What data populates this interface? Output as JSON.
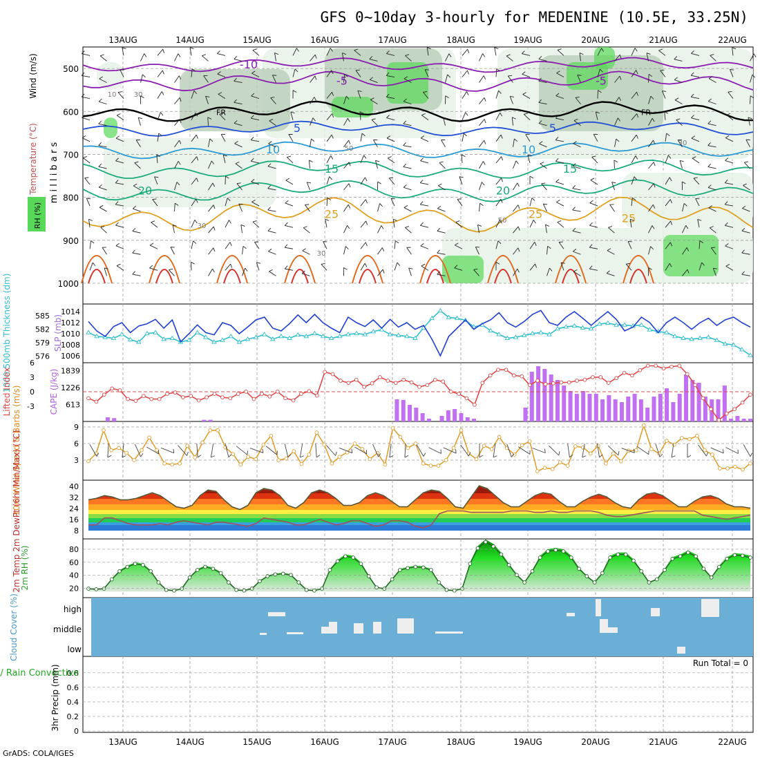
{
  "title": "GFS 0~10day 3-hourly for MEDENINE (10.5E, 33.25N)",
  "footer": "GrADS: COLA/IGES",
  "colors": {
    "temp_contour_cold": "#8a1bb0",
    "temp_contour_mid": "#1f4fd6",
    "temp_contour_warm": "#1aaa7c",
    "temp_contour_hot": "#e0a020",
    "temp_contour_red": "#d6302a",
    "rh_light": "#e6f2e6",
    "rh_mid": "#bcd0bc",
    "rh_green": "#58d858",
    "slp_line": "#1f3fd0",
    "thickness_line": "#2fbfcf",
    "lifted_index": "#e04848",
    "cape_bar": "#c070f0",
    "wind_speed": "#e0a030",
    "cloud_bg": "#6baed6",
    "cloud_fill": "#eeeeee",
    "rh2m": "#22cc22"
  },
  "icons": [
    "wind-barb-icon"
  ],
  "chart_data": [
    {
      "type": "heatmap",
      "panel": "upper-air cross-section",
      "x_dates": [
        "13AUG",
        "14AUG",
        "15AUG",
        "16AUG",
        "17AUG",
        "18AUG",
        "19AUG",
        "20AUG",
        "21AUG",
        "22AUG"
      ],
      "ylabel": "m i l l i b a r s",
      "yticks": [
        500,
        600,
        700,
        800,
        900,
        1000
      ],
      "ylim": [
        1000,
        450
      ],
      "legend_labels": [
        "Wind (m/s)",
        "Temperature (°C)",
        "RH (%)"
      ],
      "temperature_contours": [
        {
          "value": -10,
          "label": "-10"
        },
        {
          "value": -5,
          "label": "-5"
        },
        {
          "value": 0,
          "label": "FR"
        },
        {
          "value": 5,
          "label": "5"
        },
        {
          "value": 10,
          "label": "10"
        },
        {
          "value": 15,
          "label": "15"
        },
        {
          "value": 20,
          "label": "20"
        },
        {
          "value": 25,
          "label": "25"
        }
      ],
      "rh_contour_labels": [
        "10",
        "30",
        "50",
        "30",
        "30",
        "50",
        "30"
      ]
    },
    {
      "type": "line",
      "panel": "thickness-slp",
      "ylabel_left": "1000-500mb Thickness (dm)",
      "ylabel_right": "SLP (mb)",
      "yticks_thickness": [
        576,
        579,
        582,
        585
      ],
      "yticks_slp": [
        1006,
        1008,
        1010,
        1012,
        1014
      ],
      "series": [
        {
          "name": "SLP (mb)",
          "axis": "slp",
          "values": [
            1012.2,
            1010.5,
            1009.5,
            1011.3,
            1012.0,
            1010.2,
            1011.4,
            1011.8,
            1012.6,
            1011.0,
            1012.5,
            1008.5,
            1010.0,
            1011.6,
            1010.2,
            1009.8,
            1012.0,
            1011.5,
            1010.0,
            1011.2,
            1012.5,
            1013.0,
            1011.0,
            1010.5,
            1011.8,
            1013.4,
            1012.0,
            1013.5,
            1012.0,
            1011.0,
            1010.2,
            1013.0,
            1012.0,
            1011.3,
            1012.5,
            1011.0,
            1012.6,
            1011.2,
            1012.0,
            1010.8,
            1011.5,
            1009.0,
            1006.0,
            1009.5,
            1011.0,
            1012.5,
            1010.8,
            1011.8,
            1012.5,
            1013.8,
            1012.0,
            1011.2,
            1012.2,
            1013.5,
            1014.2,
            1012.0,
            1011.5,
            1013.0,
            1014.0,
            1012.8,
            1011.5,
            1012.8,
            1014.0,
            1012.6,
            1010.5,
            1011.2,
            1013.0,
            1012.0,
            1010.2,
            1012.0,
            1013.0,
            1012.0,
            1010.8,
            1012.0,
            1012.8,
            1011.5,
            1012.5,
            1013.0,
            1012.0,
            1011.2
          ]
        },
        {
          "name": "Thickness (dm)",
          "axis": "thickness",
          "values": [
            581.0,
            580.2,
            580.0,
            579.8,
            580.6,
            579.5,
            579.0,
            580.8,
            581.0,
            579.6,
            579.8,
            579.0,
            579.4,
            581.0,
            580.0,
            579.0,
            579.4,
            580.2,
            579.0,
            579.6,
            580.0,
            580.6,
            579.6,
            580.2,
            579.8,
            580.5,
            580.2,
            580.8,
            580.2,
            579.8,
            580.2,
            580.6,
            580.8,
            580.6,
            581.2,
            581.6,
            580.6,
            580.4,
            580.2,
            579.8,
            582.0,
            584.0,
            585.6,
            584.2,
            584.0,
            583.6,
            582.2,
            582.6,
            581.4,
            580.6,
            579.8,
            580.0,
            580.4,
            580.8,
            581.0,
            580.6,
            581.8,
            582.2,
            582.4,
            582.0,
            581.8,
            582.8,
            583.0,
            582.6,
            582.6,
            582.4,
            582.6,
            581.6,
            581.2,
            581.0,
            580.2,
            579.8,
            579.6,
            579.8,
            580.0,
            579.4,
            578.6,
            578.4,
            577.4,
            576.2
          ]
        }
      ]
    },
    {
      "type": "bar",
      "panel": "cape-lifted-index",
      "ylabel_left": "Lifted Index",
      "ylabel_right": "CAPE (J/kg)",
      "yticks_li": [
        -3,
        0,
        3,
        6
      ],
      "yticks_cape": [
        613,
        1226,
        1839
      ],
      "series": [
        {
          "name": "CAPE (J/kg)",
          "values": [
            0,
            0,
            0,
            150,
            120,
            0,
            0,
            0,
            0,
            0,
            0,
            0,
            0,
            0,
            0,
            0,
            0,
            0,
            60,
            60,
            0,
            0,
            0,
            0,
            0,
            0,
            0,
            0,
            0,
            0,
            0,
            0,
            0,
            0,
            0,
            0,
            0,
            0,
            0,
            0,
            0,
            0,
            0,
            0,
            0,
            0,
            0,
            0,
            800,
            780,
            600,
            500,
            300,
            100,
            0,
            200,
            400,
            450,
            300,
            150,
            100,
            0,
            0,
            0,
            0,
            0,
            0,
            0,
            500,
            1800,
            2000,
            1900,
            1700,
            1500,
            1300,
            1100,
            1000,
            1100,
            1000,
            1000,
            800,
            950,
            800,
            700,
            900,
            1000,
            800,
            500,
            900,
            1000,
            1200,
            700,
            1000,
            1700,
            1500,
            1400,
            900,
            800,
            800,
            1300,
            100,
            200,
            100,
            100
          ]
        },
        {
          "name": "Lifted Index",
          "values": [
            1.0,
            1.8,
            0.2,
            -1.2,
            -0.8,
            1.2,
            1.6,
            0.5,
            1.2,
            1.2,
            0.0,
            -0.3,
            0.8,
            0.5,
            1.5,
            0.8,
            0.0,
            0.8,
            1.0,
            0.0,
            -0.5,
            1.2,
            0.0,
            0.6,
            -0.5,
            1.0,
            1.5,
            0.0,
            -0.6,
            0.4,
            -5.0,
            -4.5,
            -3.0,
            -2.5,
            -3.2,
            -1.6,
            -2.4,
            -3.8,
            -3.0,
            -2.5,
            -3.2,
            -2.6,
            -1.6,
            -2.0,
            -3.2,
            -2.8,
            -0.5,
            0.0,
            1.0,
            2.5,
            -2.5,
            -4.2,
            -5.5,
            -5.5,
            -4.2,
            -4.0,
            -2.0,
            -3.0,
            -2.2,
            -2.4,
            -2.6,
            -2.6,
            -3.0,
            -3.2,
            -3.8,
            -3.8,
            -2.5,
            -3.6,
            -4.8,
            -4.2,
            -5.4,
            -6.4,
            -6.4,
            -5.8,
            -6.2,
            -6.4,
            -4.5,
            -2.0,
            1.0,
            3.5,
            6.0,
            4.5,
            3.5,
            2.0,
            0.2
          ]
        }
      ]
    },
    {
      "type": "line",
      "panel": "10m-wind",
      "ylabel": "10m Wind Speed & Barbs (m/s)",
      "yticks": [
        3,
        6,
        9
      ],
      "series": [
        {
          "name": "Speed",
          "values": [
            2.8,
            4.2,
            8.4,
            4.8,
            5.2,
            4.3,
            3.0,
            4.8,
            7.1,
            4.8,
            2.4,
            2.2,
            2.4,
            5.6,
            3.5,
            6.2,
            8.4,
            8.4,
            5.3,
            4.1,
            2.2,
            3.6,
            3.2,
            5.8,
            7.4,
            3.0,
            3.3,
            4.6,
            2.3,
            4.0,
            8.0,
            5.8,
            2.4,
            3.6,
            4.4,
            6.0,
            5.0,
            3.2,
            4.3,
            2.2,
            8.8,
            7.2,
            5.2,
            6.0,
            2.4,
            2.0,
            2.0,
            3.0,
            5.2,
            8.4,
            4.2,
            3.2,
            5.6,
            5.0,
            7.2,
            5.2,
            4.0,
            5.7,
            6.4,
            1.0,
            1.6,
            1.4,
            2.6,
            2.0,
            5.5,
            5.3,
            4.2,
            5.6,
            2.4,
            4.2,
            2.8,
            4.7,
            4.8,
            9.3,
            5.0,
            4.2,
            6.5,
            5.8,
            7.0,
            6.8,
            7.4,
            4.8,
            4.0,
            1.5,
            1.5,
            1.8,
            1.3,
            2.4
          ]
        }
      ]
    },
    {
      "type": "area",
      "panel": "2m-temp-dewpoint",
      "ylabel": "2m Temp 2m DewPt (6hr Min/Max) (°C)",
      "yticks": [
        8,
        16,
        24,
        32,
        40
      ],
      "series": [
        {
          "name": "2m Temp",
          "values": [
            30,
            31,
            33,
            32,
            30,
            30,
            31,
            33,
            35,
            33,
            29,
            25,
            24,
            26,
            33,
            37,
            36,
            30,
            25,
            23,
            26,
            35,
            38,
            37,
            33,
            26,
            24,
            28,
            35,
            37,
            35,
            31,
            26,
            26,
            28,
            33,
            35,
            33,
            29,
            25,
            25,
            30,
            35,
            37,
            36,
            31,
            25,
            24,
            32,
            40,
            38,
            33,
            28,
            25,
            25,
            29,
            33,
            35,
            34,
            29,
            25,
            25,
            29,
            32,
            34,
            32,
            28,
            25,
            24,
            30,
            34,
            35,
            33,
            29,
            25,
            25,
            29,
            32,
            33,
            31,
            27,
            25,
            25,
            24
          ]
        },
        {
          "name": "2m DewPt",
          "values": [
            12,
            12,
            17,
            17,
            15,
            13,
            12,
            12,
            12,
            13,
            12,
            14,
            15,
            14,
            13,
            12,
            14,
            14,
            13,
            12,
            11,
            13,
            17,
            16,
            15,
            14,
            12,
            12,
            14,
            16,
            14,
            12,
            13,
            15,
            15,
            13,
            11,
            12,
            15,
            15,
            14,
            11,
            10,
            12,
            20,
            22,
            22,
            22,
            21,
            21,
            21,
            21,
            21,
            22,
            22,
            22,
            21,
            21,
            22,
            21,
            21,
            22,
            22,
            22,
            21,
            19,
            18,
            18,
            19,
            20,
            21,
            22,
            22,
            22,
            22,
            22,
            22,
            19,
            18,
            17,
            16,
            17,
            18,
            19
          ]
        }
      ]
    },
    {
      "type": "area",
      "panel": "2m-rh",
      "ylabel": "2m RH (%)",
      "yticks": [
        20,
        40,
        60,
        80
      ],
      "series": [
        {
          "name": "2m RH",
          "values": [
            20,
            19,
            20,
            35,
            48,
            55,
            60,
            58,
            48,
            30,
            18,
            17,
            20,
            38,
            50,
            55,
            52,
            45,
            30,
            18,
            17,
            20,
            32,
            40,
            43,
            44,
            42,
            30,
            18,
            17,
            20,
            50,
            64,
            72,
            70,
            60,
            40,
            22,
            20,
            35,
            50,
            53,
            55,
            54,
            50,
            30,
            18,
            17,
            20,
            60,
            85,
            95,
            88,
            75,
            58,
            42,
            30,
            48,
            70,
            80,
            82,
            80,
            70,
            52,
            40,
            30,
            45,
            70,
            75,
            75,
            65,
            48,
            30,
            35,
            50,
            68,
            72,
            78,
            72,
            52,
            38,
            55,
            68,
            74,
            73,
            70
          ]
        }
      ]
    },
    {
      "type": "bar",
      "panel": "cloud-cover",
      "ylabel": "Cloud Cover (%)",
      "yticks": [
        "high",
        "middle",
        "low"
      ],
      "series": [
        {
          "name": "high",
          "values": [
            0,
            0,
            0,
            0,
            0,
            0,
            0,
            0,
            0,
            0,
            0,
            0,
            0,
            0,
            0,
            0,
            0,
            0,
            0,
            0,
            0,
            0,
            0,
            0,
            0,
            0,
            0,
            0,
            0,
            0,
            0,
            0,
            0,
            0,
            0,
            0,
            0,
            0,
            0,
            0,
            0,
            0,
            0,
            0,
            0,
            0,
            0,
            0,
            0,
            0,
            0,
            0,
            0,
            0,
            0,
            0,
            0,
            0,
            0,
            0,
            0,
            0,
            0,
            0,
            0,
            0,
            0,
            0,
            0,
            0,
            0,
            0,
            0,
            0,
            0,
            0,
            0,
            0,
            0,
            0,
            0,
            0,
            0,
            0,
            0,
            0,
            0,
            0,
            0,
            0,
            0,
            0,
            0,
            0,
            0,
            0,
            0
          ]
        }
      ]
    },
    {
      "type": "bar",
      "panel": "3hr-precip",
      "ylabel_left": "Total / Rain Convective",
      "ylabel": "3hr Precip (mm)",
      "yticks": [
        0,
        0.2,
        0.4,
        0.6,
        0.8
      ],
      "annotation": "Run Total = 0",
      "series": []
    }
  ]
}
